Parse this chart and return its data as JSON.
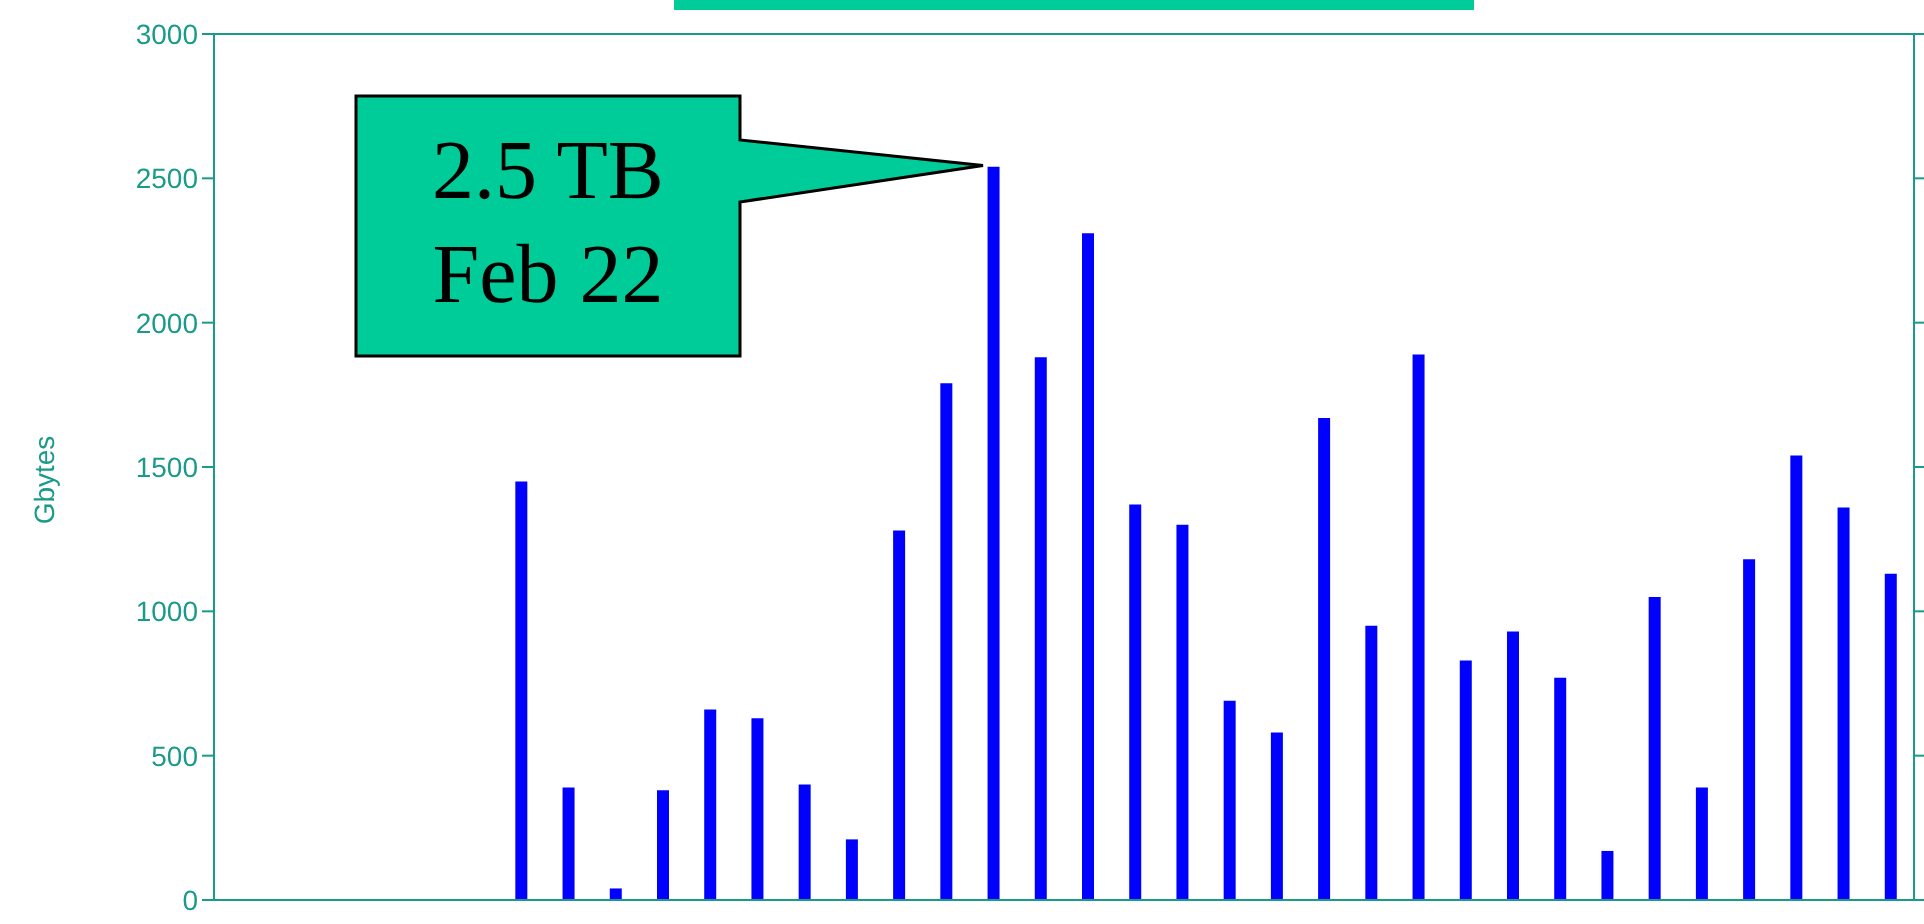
{
  "chart_data": {
    "type": "bar",
    "ylabel": "Gbytes",
    "categories": [
      null,
      null,
      null,
      null,
      null,
      null,
      null,
      null,
      null,
      null,
      null,
      null,
      null,
      null,
      null,
      null,
      null,
      null,
      null,
      null,
      null,
      null,
      null,
      null,
      null,
      null,
      null,
      null,
      null,
      null,
      null,
      null,
      null,
      null,
      null,
      null
    ],
    "values": [
      null,
      null,
      null,
      null,
      null,
      null,
      1450,
      390,
      40,
      380,
      660,
      630,
      400,
      210,
      1280,
      1790,
      2540,
      1880,
      2310,
      1370,
      1300,
      690,
      580,
      1670,
      950,
      1890,
      830,
      930,
      770,
      170,
      1050,
      390,
      1180,
      1540,
      1360,
      1130
    ],
    "color": "#0000ff",
    "ylim": [
      0,
      3000
    ],
    "yticks": [
      0,
      500,
      1000,
      1500,
      2000,
      2500,
      3000
    ],
    "tick_labels": "y",
    "annotations": [
      "2.5 TB\nFeb 22"
    ]
  }
}
